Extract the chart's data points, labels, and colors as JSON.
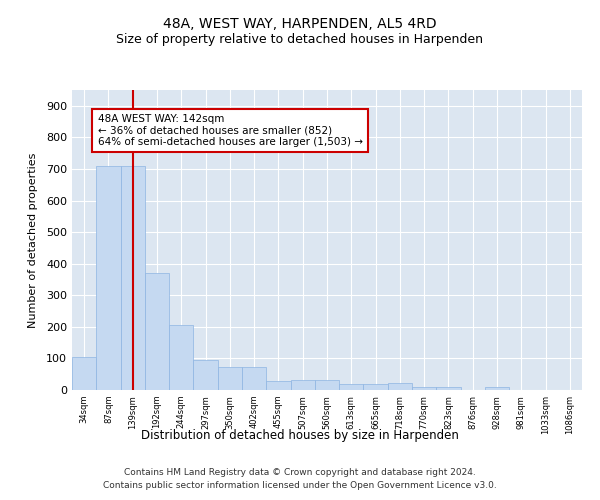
{
  "title": "48A, WEST WAY, HARPENDEN, AL5 4RD",
  "subtitle": "Size of property relative to detached houses in Harpenden",
  "xlabel": "Distribution of detached houses by size in Harpenden",
  "ylabel": "Number of detached properties",
  "categories": [
    "34sqm",
    "87sqm",
    "139sqm",
    "192sqm",
    "244sqm",
    "297sqm",
    "350sqm",
    "402sqm",
    "455sqm",
    "507sqm",
    "560sqm",
    "613sqm",
    "665sqm",
    "718sqm",
    "770sqm",
    "823sqm",
    "876sqm",
    "928sqm",
    "981sqm",
    "1033sqm",
    "1086sqm"
  ],
  "values": [
    103,
    710,
    710,
    370,
    205,
    95,
    72,
    72,
    30,
    33,
    33,
    18,
    18,
    22,
    8,
    8,
    0,
    8,
    0,
    0,
    0
  ],
  "bar_color": "#c5d9f1",
  "bar_edge_color": "#8db4e2",
  "vline_x": 2.0,
  "vline_color": "#cc0000",
  "annotation_text": "48A WEST WAY: 142sqm\n← 36% of detached houses are smaller (852)\n64% of semi-detached houses are larger (1,503) →",
  "annotation_box_color": "#cc0000",
  "annotation_fill": "#ffffff",
  "ylim": [
    0,
    950
  ],
  "yticks": [
    0,
    100,
    200,
    300,
    400,
    500,
    600,
    700,
    800,
    900
  ],
  "bg_color": "#dce6f1",
  "footer1": "Contains HM Land Registry data © Crown copyright and database right 2024.",
  "footer2": "Contains public sector information licensed under the Open Government Licence v3.0.",
  "title_fontsize": 10,
  "subtitle_fontsize": 9
}
